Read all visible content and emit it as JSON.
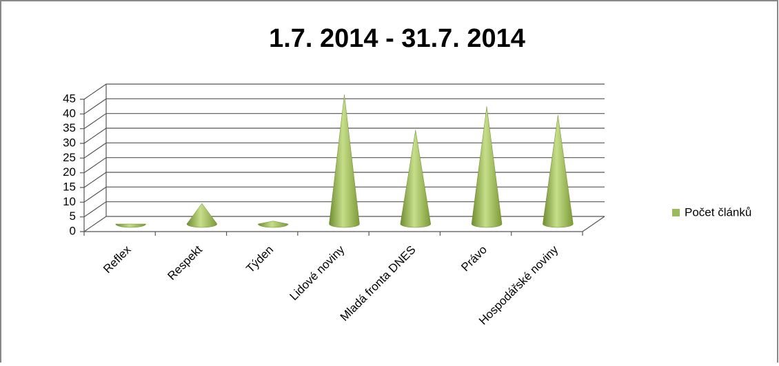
{
  "chart_data": {
    "type": "cone",
    "title": "1.7. 2014 - 31.7. 2014",
    "categories": [
      "Reflex",
      "Respekt",
      "Týden",
      "Lidové noviny",
      "Mladá fronta DNES",
      "Právo",
      "Hospodářské noviny"
    ],
    "series": [
      {
        "name": "Počet článků",
        "color": "#9bbb59",
        "values": [
          0,
          7,
          1,
          44,
          32,
          40,
          37
        ]
      }
    ],
    "ylim": [
      0,
      45
    ],
    "yticks": [
      0,
      5,
      10,
      15,
      20,
      25,
      30,
      35,
      40,
      45
    ],
    "grid": true,
    "legend": "right"
  }
}
